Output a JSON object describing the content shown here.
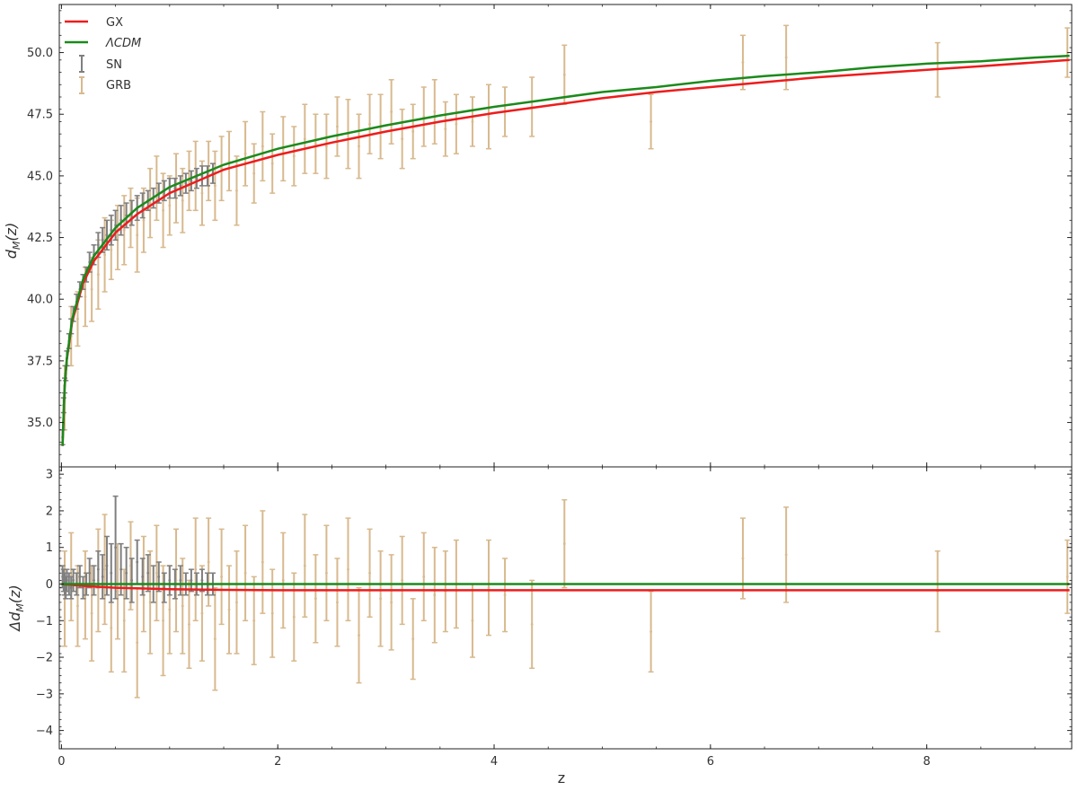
{
  "chart_data": [
    {
      "type": "line",
      "panel": "top",
      "title": "",
      "xlabel": "",
      "ylabel": "d_M(z)",
      "ylabel_parts": {
        "base": "d",
        "sub": "M",
        "tail": "(z)"
      },
      "xlim": [
        -0.02,
        9.34
      ],
      "ylim": [
        33.2,
        51.95
      ],
      "yticks": [
        35.0,
        37.5,
        40.0,
        42.5,
        45.0,
        47.5,
        50.0
      ],
      "ytick_labels": [
        "35.0",
        "37.5",
        "40.0",
        "42.5",
        "45.0",
        "47.5",
        "50.0"
      ],
      "xticks": [
        0,
        2,
        4,
        6,
        8
      ],
      "grid": false,
      "legend_position": "top-left",
      "legend": [
        {
          "label": "GX",
          "kind": "line",
          "color": "#ee1c1c"
        },
        {
          "label": "ΛCDM",
          "kind": "line",
          "color": "#1b8a1b",
          "italic": true
        },
        {
          "label": "SN",
          "kind": "errorbar",
          "color": "#7f7f7f"
        },
        {
          "label": "GRB",
          "kind": "errorbar",
          "color": "#d8b98e"
        }
      ],
      "series": [
        {
          "name": "GX",
          "kind": "line",
          "color": "#ee1c1c",
          "x": [
            0.01,
            0.03,
            0.05,
            0.1,
            0.2,
            0.3,
            0.5,
            0.7,
            1.0,
            1.5,
            2.0,
            2.5,
            3.0,
            3.5,
            4.0,
            4.5,
            5.0,
            5.5,
            6.0,
            6.5,
            7.0,
            7.5,
            8.0,
            8.5,
            9.0,
            9.32
          ],
          "y": [
            34.05,
            36.45,
            37.55,
            39.1,
            40.65,
            41.55,
            42.7,
            43.45,
            44.3,
            45.25,
            45.85,
            46.35,
            46.8,
            47.2,
            47.55,
            47.85,
            48.15,
            48.4,
            48.6,
            48.8,
            49.0,
            49.15,
            49.3,
            49.45,
            49.6,
            49.7
          ]
        },
        {
          "name": "ΛCDM",
          "kind": "line",
          "color": "#1b8a1b",
          "x": [
            0.01,
            0.03,
            0.05,
            0.1,
            0.2,
            0.3,
            0.5,
            0.7,
            1.0,
            1.5,
            2.0,
            2.5,
            3.0,
            3.5,
            4.0,
            4.5,
            5.0,
            5.5,
            6.0,
            6.5,
            7.0,
            7.5,
            8.0,
            8.5,
            9.0,
            9.32
          ],
          "y": [
            34.05,
            36.5,
            37.6,
            39.2,
            40.8,
            41.75,
            42.9,
            43.7,
            44.55,
            45.45,
            46.1,
            46.6,
            47.05,
            47.45,
            47.8,
            48.1,
            48.4,
            48.6,
            48.85,
            49.05,
            49.2,
            49.4,
            49.55,
            49.65,
            49.8,
            49.87
          ]
        },
        {
          "name": "SN",
          "kind": "errorbar",
          "color": "#7f7f7f",
          "x": [
            0.01,
            0.02,
            0.03,
            0.04,
            0.05,
            0.07,
            0.09,
            0.11,
            0.14,
            0.17,
            0.2,
            0.23,
            0.26,
            0.3,
            0.34,
            0.38,
            0.42,
            0.46,
            0.5,
            0.55,
            0.6,
            0.65,
            0.7,
            0.75,
            0.8,
            0.85,
            0.9,
            0.95,
            1.0,
            1.05,
            1.1,
            1.15,
            1.2,
            1.25,
            1.3,
            1.35,
            1.4
          ],
          "y": [
            34.4,
            35.7,
            36.5,
            37.0,
            37.6,
            38.3,
            38.9,
            39.4,
            39.9,
            40.4,
            40.7,
            41.0,
            41.5,
            41.8,
            42.2,
            42.4,
            42.6,
            42.8,
            43.0,
            43.2,
            43.4,
            43.5,
            43.7,
            43.8,
            44.0,
            44.1,
            44.3,
            44.4,
            44.5,
            44.5,
            44.6,
            44.7,
            44.8,
            44.9,
            45.0,
            45.0,
            45.1
          ],
          "err": [
            0.3,
            0.3,
            0.3,
            0.3,
            0.3,
            0.3,
            0.3,
            0.3,
            0.3,
            0.3,
            0.3,
            0.3,
            0.4,
            0.4,
            0.5,
            0.5,
            0.6,
            0.6,
            0.6,
            0.6,
            0.5,
            0.5,
            0.5,
            0.5,
            0.4,
            0.4,
            0.4,
            0.4,
            0.4,
            0.4,
            0.4,
            0.4,
            0.4,
            0.4,
            0.4,
            0.4,
            0.4
          ]
        },
        {
          "name": "GRB",
          "kind": "errorbar",
          "color": "#d8b98e",
          "x": [
            0.03,
            0.09,
            0.15,
            0.22,
            0.28,
            0.34,
            0.4,
            0.46,
            0.52,
            0.58,
            0.64,
            0.7,
            0.76,
            0.82,
            0.88,
            0.94,
            1.0,
            1.06,
            1.12,
            1.18,
            1.24,
            1.3,
            1.36,
            1.42,
            1.48,
            1.55,
            1.62,
            1.7,
            1.78,
            1.86,
            1.95,
            2.05,
            2.15,
            2.25,
            2.35,
            2.45,
            2.55,
            2.65,
            2.75,
            2.85,
            2.95,
            3.05,
            3.15,
            3.25,
            3.35,
            3.45,
            3.55,
            3.65,
            3.8,
            3.95,
            4.1,
            4.35,
            4.65,
            5.45,
            6.3,
            6.7,
            8.1,
            9.3
          ],
          "y": [
            36.0,
            38.5,
            39.2,
            40.1,
            40.4,
            41.0,
            41.8,
            42.0,
            42.5,
            42.8,
            43.3,
            42.6,
            43.2,
            43.9,
            44.5,
            43.6,
            43.8,
            44.5,
            44.0,
            44.8,
            45.0,
            44.3,
            45.2,
            44.6,
            45.3,
            45.6,
            44.4,
            45.9,
            45.1,
            46.2,
            45.5,
            46.1,
            45.8,
            46.5,
            46.3,
            46.2,
            47.0,
            46.7,
            46.2,
            47.1,
            47.0,
            47.6,
            46.5,
            46.8,
            47.4,
            47.6,
            46.9,
            47.1,
            47.2,
            47.4,
            47.6,
            47.8,
            49.1,
            47.2,
            49.6,
            49.8,
            49.3,
            50.0
          ],
          "err": [
            1.3,
            1.2,
            1.1,
            1.2,
            1.3,
            1.4,
            1.5,
            1.2,
            1.3,
            1.4,
            1.2,
            1.5,
            1.3,
            1.4,
            1.3,
            1.5,
            1.2,
            1.4,
            1.3,
            1.2,
            1.4,
            1.3,
            1.2,
            1.4,
            1.3,
            1.2,
            1.4,
            1.3,
            1.2,
            1.4,
            1.2,
            1.3,
            1.2,
            1.4,
            1.2,
            1.3,
            1.2,
            1.4,
            1.3,
            1.2,
            1.3,
            1.3,
            1.2,
            1.1,
            1.2,
            1.3,
            1.1,
            1.2,
            1.0,
            1.3,
            1.0,
            1.2,
            1.2,
            1.1,
            1.1,
            1.3,
            1.1,
            1.0
          ]
        }
      ]
    },
    {
      "type": "line",
      "panel": "bottom",
      "title": "",
      "xlabel": "z",
      "ylabel": "Δd_M(z)",
      "ylabel_parts": {
        "base": "Δd",
        "sub": "M",
        "tail": "(z)"
      },
      "xlim": [
        -0.02,
        9.34
      ],
      "ylim": [
        -4.5,
        3.2
      ],
      "yticks": [
        -4,
        -3,
        -2,
        -1,
        0,
        1,
        2,
        3
      ],
      "ytick_labels": [
        "−4",
        "−3",
        "−2",
        "−1",
        "0",
        "1",
        "2",
        "3"
      ],
      "xticks": [
        0,
        2,
        4,
        6,
        8
      ],
      "xtick_labels": [
        "0",
        "2",
        "4",
        "6",
        "8"
      ],
      "grid": false,
      "series": [
        {
          "name": "GX",
          "kind": "line",
          "color": "#ee1c1c",
          "x": [
            0.0,
            0.2,
            0.5,
            1.0,
            1.5,
            2.0,
            3.0,
            5.0,
            7.0,
            9.32
          ],
          "y": [
            0.0,
            -0.05,
            -0.1,
            -0.14,
            -0.16,
            -0.17,
            -0.17,
            -0.17,
            -0.17,
            -0.17
          ]
        },
        {
          "name": "ΛCDM",
          "kind": "line",
          "color": "#1b8a1b",
          "x": [
            0.0,
            9.32
          ],
          "y": [
            0.0,
            0.0
          ]
        },
        {
          "name": "SN",
          "kind": "errorbar",
          "color": "#7f7f7f",
          "x": [
            0.01,
            0.02,
            0.03,
            0.04,
            0.05,
            0.07,
            0.09,
            0.11,
            0.14,
            0.17,
            0.2,
            0.23,
            0.26,
            0.3,
            0.34,
            0.38,
            0.42,
            0.46,
            0.5,
            0.55,
            0.6,
            0.65,
            0.7,
            0.75,
            0.8,
            0.85,
            0.9,
            0.95,
            1.0,
            1.05,
            1.1,
            1.15,
            1.2,
            1.25,
            1.3,
            1.35,
            1.4
          ],
          "y": [
            0.2,
            0.1,
            0.0,
            -0.1,
            0.1,
            0.0,
            -0.1,
            0.1,
            0.0,
            0.2,
            -0.1,
            0.0,
            0.3,
            0.1,
            0.4,
            0.2,
            0.5,
            0.3,
            1.0,
            0.4,
            0.3,
            0.1,
            0.6,
            0.2,
            0.3,
            0.0,
            0.2,
            -0.1,
            0.1,
            0.0,
            0.1,
            0.0,
            0.1,
            0.0,
            0.1,
            0.0,
            0.0
          ],
          "err": [
            0.3,
            0.3,
            0.3,
            0.3,
            0.3,
            0.3,
            0.3,
            0.3,
            0.3,
            0.3,
            0.3,
            0.3,
            0.4,
            0.4,
            0.5,
            0.6,
            0.8,
            0.8,
            1.4,
            0.7,
            0.7,
            0.6,
            0.6,
            0.5,
            0.5,
            0.5,
            0.4,
            0.4,
            0.4,
            0.4,
            0.4,
            0.3,
            0.3,
            0.3,
            0.3,
            0.3,
            0.3
          ]
        },
        {
          "name": "GRB",
          "kind": "errorbar",
          "color": "#d8b98e",
          "x": [
            0.03,
            0.09,
            0.15,
            0.22,
            0.28,
            0.34,
            0.4,
            0.46,
            0.52,
            0.58,
            0.64,
            0.7,
            0.76,
            0.82,
            0.88,
            0.94,
            1.0,
            1.06,
            1.12,
            1.18,
            1.24,
            1.3,
            1.36,
            1.42,
            1.48,
            1.55,
            1.62,
            1.7,
            1.78,
            1.86,
            1.95,
            2.05,
            2.15,
            2.25,
            2.35,
            2.45,
            2.55,
            2.65,
            2.75,
            2.85,
            2.95,
            3.05,
            3.15,
            3.25,
            3.35,
            3.45,
            3.55,
            3.65,
            3.8,
            3.95,
            4.1,
            4.35,
            4.65,
            5.45,
            6.3,
            6.7,
            8.1,
            9.3
          ],
          "y": [
            -0.4,
            0.2,
            -0.6,
            -0.3,
            -0.8,
            0.1,
            0.4,
            -1.2,
            -0.2,
            -1.0,
            0.5,
            -1.6,
            0.0,
            -0.5,
            0.3,
            -1.0,
            -0.7,
            0.1,
            -0.6,
            -1.1,
            0.4,
            -0.8,
            0.6,
            -1.5,
            0.2,
            -0.7,
            -0.5,
            0.3,
            -1.0,
            0.6,
            -0.8,
            0.1,
            -0.9,
            0.5,
            -0.4,
            0.3,
            -0.5,
            0.4,
            -1.4,
            0.3,
            -0.4,
            -0.5,
            0.1,
            -1.5,
            0.2,
            -0.3,
            -0.2,
            0.0,
            -1.0,
            -0.1,
            -0.3,
            -1.1,
            1.1,
            -1.3,
            0.7,
            0.8,
            -0.2,
            0.2
          ],
          "err": [
            1.3,
            1.2,
            1.1,
            1.2,
            1.3,
            1.4,
            1.5,
            1.2,
            1.3,
            1.4,
            1.2,
            1.5,
            1.3,
            1.4,
            1.3,
            1.5,
            1.2,
            1.4,
            1.3,
            1.2,
            1.4,
            1.3,
            1.2,
            1.4,
            1.3,
            1.2,
            1.4,
            1.3,
            1.2,
            1.4,
            1.2,
            1.3,
            1.2,
            1.4,
            1.2,
            1.3,
            1.2,
            1.4,
            1.3,
            1.2,
            1.3,
            1.3,
            1.2,
            1.1,
            1.2,
            1.3,
            1.1,
            1.2,
            1.0,
            1.3,
            1.0,
            1.2,
            1.2,
            1.1,
            1.1,
            1.3,
            1.1,
            1.0
          ]
        }
      ]
    }
  ]
}
